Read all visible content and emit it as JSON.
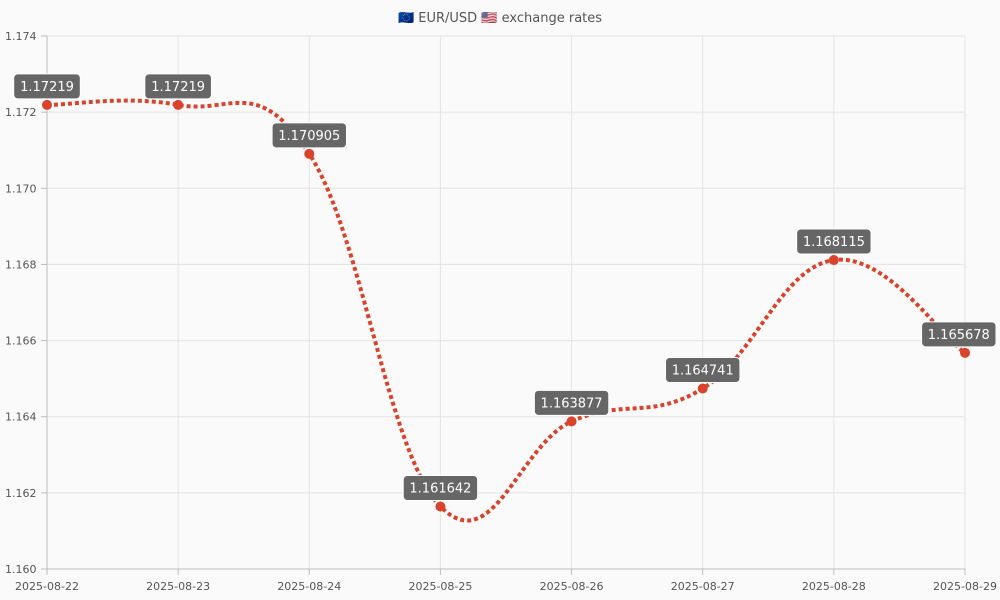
{
  "chart_data": {
    "type": "line",
    "title": "🇪🇺 EUR/USD 🇺🇸 exchange rates",
    "categories": [
      "2025-08-22",
      "2025-08-23",
      "2025-08-24",
      "2025-08-25",
      "2025-08-26",
      "2025-08-27",
      "2025-08-28",
      "2025-08-29"
    ],
    "series": [
      {
        "values": [
          1.17219,
          1.17219,
          1.170905,
          1.161642,
          1.163877,
          1.164741,
          1.168115,
          1.165678
        ],
        "labels": [
          "1.17219",
          "1.17219",
          "1.170905",
          "1.161642",
          "1.163877",
          "1.164741",
          "1.168115",
          "1.165678"
        ],
        "color": "#d9432b",
        "line_style": "dotted",
        "smooth": true
      }
    ],
    "ylim": [
      1.16,
      1.174
    ],
    "yticks": [
      "1.160",
      "1.162",
      "1.164",
      "1.166",
      "1.168",
      "1.170",
      "1.172",
      "1.174"
    ],
    "grid": true,
    "data_labels": true,
    "label_background": "#666666",
    "xlabel": "",
    "ylabel": ""
  }
}
